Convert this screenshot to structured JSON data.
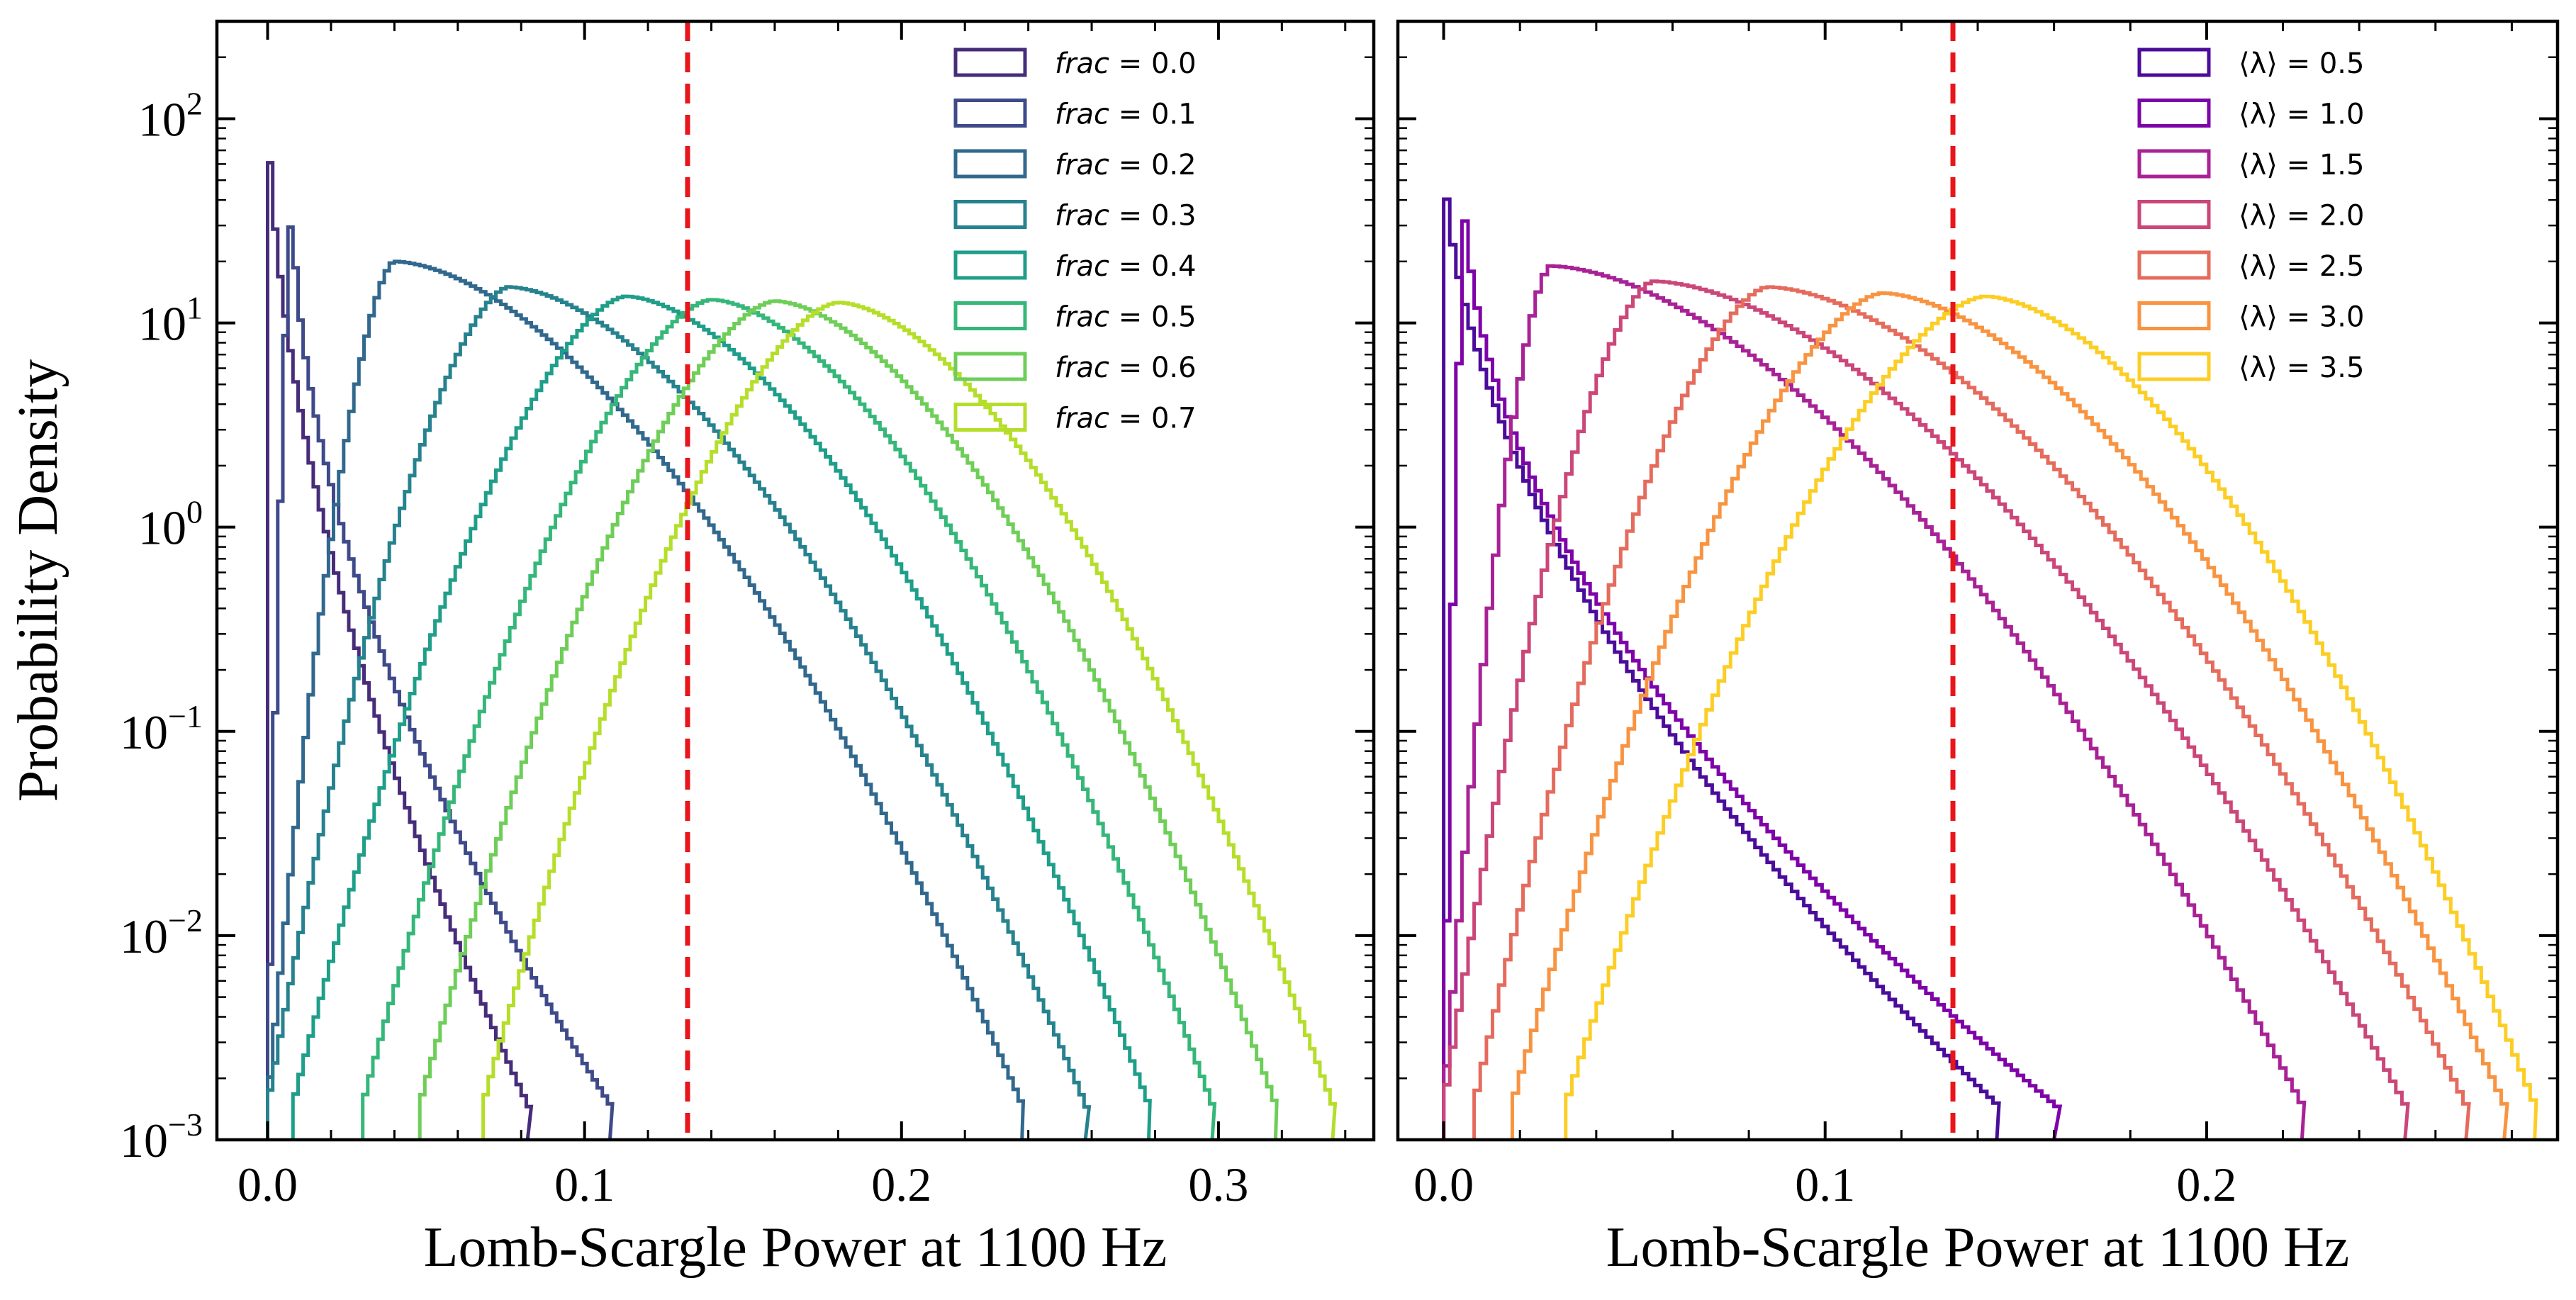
{
  "chart_data": [
    {
      "type": "histogram-step",
      "ylabel": "Probability Density",
      "xlabel": "Lomb-Scargle Power at 1100 Hz",
      "xlim": [
        -0.016,
        0.349
      ],
      "ylim": [
        0.001,
        300
      ],
      "yscale": "log",
      "xticks": [
        0.0,
        0.1,
        0.2,
        0.3
      ],
      "xtick_labels": [
        "0.0",
        "0.1",
        "0.2",
        "0.3"
      ],
      "yticks": [
        {
          "mantissa": "10",
          "exponent": "2",
          "value": 100
        },
        {
          "mantissa": "10",
          "exponent": "1",
          "value": 10
        },
        {
          "mantissa": "10",
          "exponent": "0",
          "value": 1
        },
        {
          "mantissa": "10",
          "exponent": "−1",
          "value": 0.1
        },
        {
          "mantissa": "10",
          "exponent": "−2",
          "value": 0.01
        },
        {
          "mantissa": "10",
          "exponent": "−3",
          "value": 0.001
        }
      ],
      "threshold_x": 0.1325,
      "threshold_color": "#e8151b",
      "legend_position": "top-right",
      "series": [
        {
          "prefix": "frac",
          "value_text": " = 0.0",
          "color": "#472c7a",
          "peak_x": 0.0,
          "peak_y": 150,
          "xmin": 0.0,
          "xmax": 0.082
        },
        {
          "prefix": "frac",
          "value_text": " = 0.1",
          "color": "#3e4a89",
          "peak_x": 0.008,
          "peak_y": 38,
          "xmin": 0.0,
          "xmax": 0.108
        },
        {
          "prefix": "frac",
          "value_text": " = 0.2",
          "color": "#31688e",
          "peak_x": 0.04,
          "peak_y": 20,
          "xmin": 0.0,
          "xmax": 0.238
        },
        {
          "prefix": "frac",
          "value_text": " = 0.3",
          "color": "#26828e",
          "peak_x": 0.076,
          "peak_y": 15,
          "xmin": 0.0,
          "xmax": 0.258
        },
        {
          "prefix": "frac",
          "value_text": " = 0.4",
          "color": "#1f9e89",
          "peak_x": 0.113,
          "peak_y": 13.5,
          "xmin": 0.008,
          "xmax": 0.278
        },
        {
          "prefix": "frac",
          "value_text": " = 0.5",
          "color": "#35b779",
          "peak_x": 0.14,
          "peak_y": 13,
          "xmin": 0.03,
          "xmax": 0.298
        },
        {
          "prefix": "frac",
          "value_text": " = 0.6",
          "color": "#6ece58",
          "peak_x": 0.16,
          "peak_y": 12.8,
          "xmin": 0.048,
          "xmax": 0.318
        },
        {
          "prefix": "frac",
          "value_text": " = 0.7",
          "color": "#b5de2b",
          "peak_x": 0.18,
          "peak_y": 12.6,
          "xmin": 0.068,
          "xmax": 0.336
        }
      ]
    },
    {
      "type": "histogram-step",
      "ylabel": "",
      "xlabel": "Lomb-Scargle Power at 1100 Hz",
      "xlim": [
        -0.012,
        0.292
      ],
      "ylim": [
        0.001,
        300
      ],
      "yscale": "log",
      "xticks": [
        0.0,
        0.1,
        0.2
      ],
      "xtick_labels": [
        "0.0",
        "0.1",
        "0.2"
      ],
      "threshold_x": 0.1335,
      "threshold_color": "#e8151b",
      "legend_position": "top-right",
      "series": [
        {
          "prefix": "⟨λ⟩",
          "value_text": " = 0.5",
          "color": "#4b0c9b",
          "peak_x": 0.0,
          "peak_y": 75,
          "xmin": 0.0,
          "xmax": 0.145
        },
        {
          "prefix": "⟨λ⟩",
          "value_text": " = 1.0",
          "color": "#7e03a8",
          "peak_x": 0.006,
          "peak_y": 36,
          "xmin": 0.0,
          "xmax": 0.16
        },
        {
          "prefix": "⟨λ⟩",
          "value_text": " = 1.5",
          "color": "#a82296",
          "peak_x": 0.028,
          "peak_y": 19,
          "xmin": 0.0,
          "xmax": 0.225
        },
        {
          "prefix": "⟨λ⟩",
          "value_text": " = 2.0",
          "color": "#cb4679",
          "peak_x": 0.055,
          "peak_y": 16,
          "xmin": 0.0,
          "xmax": 0.252
        },
        {
          "prefix": "⟨λ⟩",
          "value_text": " = 2.5",
          "color": "#e56b5d",
          "peak_x": 0.085,
          "peak_y": 15,
          "xmin": 0.008,
          "xmax": 0.268
        },
        {
          "prefix": "⟨λ⟩",
          "value_text": " = 3.0",
          "color": "#f89441",
          "peak_x": 0.115,
          "peak_y": 14,
          "xmin": 0.018,
          "xmax": 0.278
        },
        {
          "prefix": "⟨λ⟩",
          "value_text": " = 3.5",
          "color": "#fcce25",
          "peak_x": 0.142,
          "peak_y": 13.5,
          "xmin": 0.032,
          "xmax": 0.286
        }
      ]
    }
  ]
}
